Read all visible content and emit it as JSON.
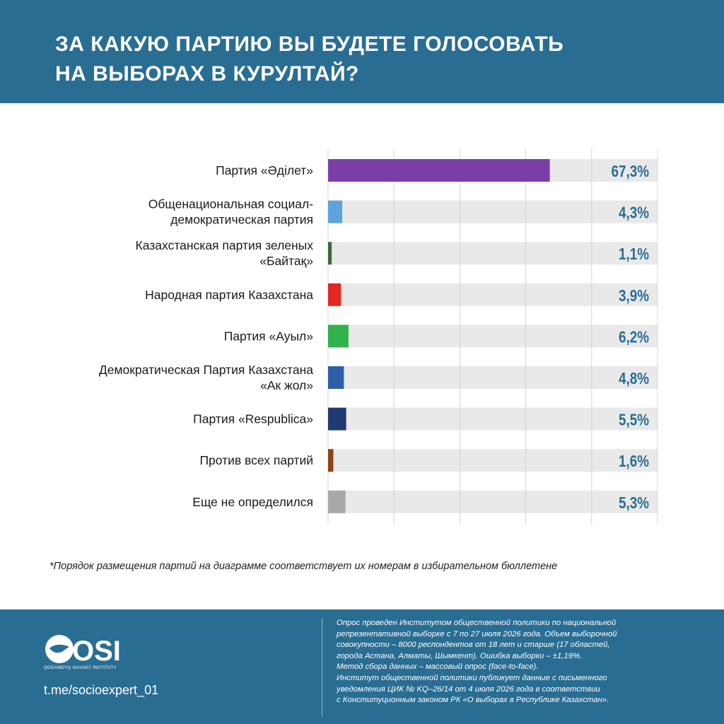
{
  "header": {
    "title_line1": "ЗА КАКУЮ ПАРТИЮ ВЫ БУДЕТЕ ГОЛОСОВАТЬ",
    "title_line2": "НА ВЫБОРАХ В КУРУЛТАЙ?"
  },
  "colors": {
    "header_bg": "#2a6d93",
    "track": "#e9e9e9",
    "value_text": "#2a6d93"
  },
  "chart_data": {
    "type": "bar",
    "orientation": "horizontal",
    "xlim": [
      0,
      100
    ],
    "grid": true,
    "categories": [
      [
        "Партия «Әділет»"
      ],
      [
        "Общенациональная социал-",
        "демократическая партия"
      ],
      [
        "Казахстанская партия зеленых",
        "«Байтақ»"
      ],
      [
        "Народная партия Казахстана"
      ],
      [
        "Партия «Ауыл»"
      ],
      [
        "Демократическая Партия Казахстана",
        "«Ак жол»"
      ],
      [
        "Партия «Respublica»"
      ],
      [
        "Против всех партий"
      ],
      [
        "Еще не определился"
      ]
    ],
    "values": [
      67.3,
      4.3,
      1.1,
      3.9,
      6.2,
      4.8,
      5.5,
      1.6,
      5.3
    ],
    "value_labels": [
      "67,3%",
      "4,3%",
      "1,1%",
      "3,9%",
      "6,2%",
      "4,8%",
      "5,5%",
      "1,6%",
      "5,3%"
    ],
    "bar_colors": [
      "#7b3ea8",
      "#5fa3dc",
      "#3d6b35",
      "#e52521",
      "#2fb34a",
      "#2c5fa8",
      "#1e3a6e",
      "#8b4513",
      "#a8a8a8"
    ]
  },
  "footnote": "*Порядок размещения партий на диаграмме соответствует их номерам в избирательном бюллетене",
  "footer": {
    "logo_text": "OSI",
    "logo_subtitle": "QOǴAMDYQ SAIASAT INSTITUTY",
    "telegram": "t.me/socioexpert_01",
    "info_lines": [
      "Опрос проведен Институтом общественной политики по национальной",
      "репрезентативной выборке с 7 по 27 июля 2026 года. Объем выборочной",
      "совокупности – 8000 респондентов от 18 лет и старше (17 областей,",
      "города Астана, Алматы, Шымкент). Ошибка выборки – ±1,19%.",
      "Метод сбора данных – массовый опрос (face-to-face).",
      "Институт общественной политики публикует данные с письменного",
      "уведомления ЦИК № KQ–26/14 от 4 июля 2026 года в соответствии",
      "с Конституционным законом РК «О выборах в Республике Казахстан»."
    ]
  }
}
